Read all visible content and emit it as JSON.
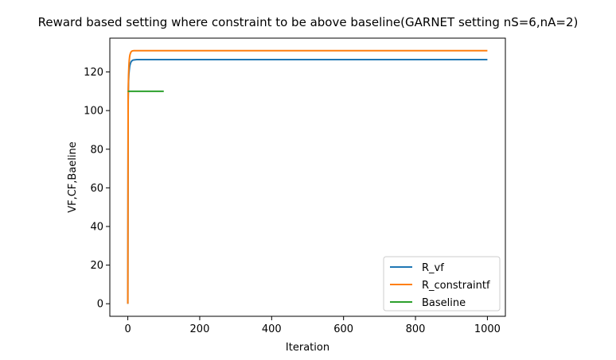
{
  "chart_data": {
    "type": "line",
    "title": "Reward based setting where constraint to be above baseline(GARNET setting nS=6,nA=2)",
    "xlabel": "Iteration",
    "ylabel": "VF,CF,Baeline",
    "xlim": [
      -50,
      1050
    ],
    "ylim": [
      -6.5,
      137.5
    ],
    "xticks": [
      0,
      200,
      400,
      600,
      800,
      1000
    ],
    "yticks": [
      0,
      20,
      40,
      60,
      80,
      100,
      120
    ],
    "grid": false,
    "legend_position": "lower-right",
    "series": [
      {
        "name": "R_vf",
        "color": "#1f77b4",
        "x": [
          0,
          1,
          2,
          3,
          4,
          5,
          6,
          8,
          10,
          13,
          16,
          20,
          25,
          30,
          40,
          50,
          100,
          1000
        ],
        "y": [
          0,
          105,
          115,
          119,
          121,
          122.6,
          123.6,
          124.8,
          125.5,
          126.0,
          126.2,
          126.3,
          126.4,
          126.4,
          126.4,
          126.4,
          126.4,
          126.4
        ]
      },
      {
        "name": "R_constraintf",
        "color": "#ff7f0e",
        "x": [
          0,
          1,
          2,
          3,
          4,
          5,
          6,
          8,
          10,
          13,
          16,
          20,
          25,
          30,
          40,
          50,
          100,
          1000
        ],
        "y": [
          0,
          108,
          118,
          123,
          126,
          127.8,
          128.9,
          130.0,
          130.6,
          130.9,
          131.0,
          131.0,
          131.0,
          131.0,
          131.0,
          131.0,
          131.0,
          131.0
        ]
      },
      {
        "name": "Baseline",
        "color": "#2ca02c",
        "x": [
          0,
          100
        ],
        "y": [
          110,
          110
        ]
      }
    ]
  }
}
